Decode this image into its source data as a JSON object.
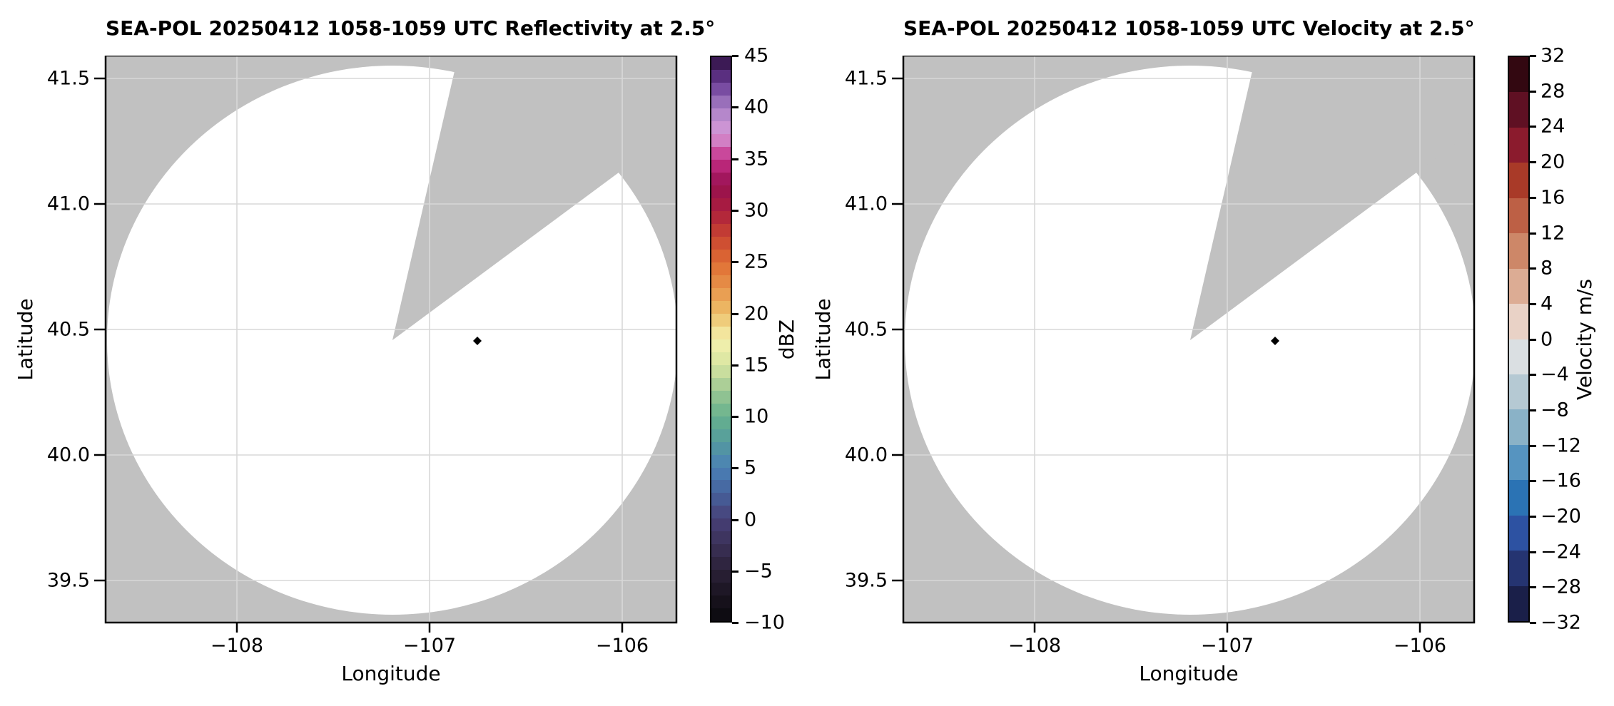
{
  "panels": [
    {
      "title": "SEA-POL 20250412 1058-1059 UTC Reflectivity at 2.5°"
    },
    {
      "title": "SEA-POL 20250412 1058-1059 UTC Velocity at 2.5°"
    }
  ],
  "axes": {
    "xlabel": "Longitude",
    "ylabel": "Latitude",
    "lon_ticks": [
      "−108",
      "−107",
      "−106"
    ],
    "lat_ticks": [
      "41.5",
      "41.0",
      "40.5",
      "40.0",
      "39.5"
    ]
  },
  "colorbars": {
    "reflectivity": {
      "label": "dBZ",
      "ticks": [
        "45",
        "40",
        "35",
        "30",
        "25",
        "20",
        "15",
        "10",
        "5",
        "0",
        "−5",
        "−10"
      ],
      "vmin": -10,
      "vmax": 45,
      "band_step": 1.25,
      "stops": [
        [
          -10,
          "#0a090d"
        ],
        [
          -7.5,
          "#1a1420"
        ],
        [
          -5,
          "#2b2138"
        ],
        [
          -2.5,
          "#3b3158"
        ],
        [
          0,
          "#474078"
        ],
        [
          2.5,
          "#46629d"
        ],
        [
          5,
          "#4a80b6"
        ],
        [
          7.5,
          "#549b9e"
        ],
        [
          10,
          "#66b18d"
        ],
        [
          12.5,
          "#9dc893"
        ],
        [
          15,
          "#d7e5a1"
        ],
        [
          17.5,
          "#f5f1ae"
        ],
        [
          20,
          "#edc06a"
        ],
        [
          22.5,
          "#e7944b"
        ],
        [
          25,
          "#e06d33"
        ],
        [
          27.5,
          "#c94531"
        ],
        [
          30,
          "#ac1e3d"
        ],
        [
          32.5,
          "#96104f"
        ],
        [
          35,
          "#c42d86"
        ],
        [
          37.5,
          "#d79ad8"
        ],
        [
          40,
          "#a981c6"
        ],
        [
          42.5,
          "#693a96"
        ],
        [
          45,
          "#2d0f3f"
        ]
      ]
    },
    "velocity": {
      "label": "Velocity m/s",
      "ticks": [
        "32",
        "28",
        "24",
        "20",
        "16",
        "12",
        "8",
        "4",
        "0",
        "−4",
        "−8",
        "−12",
        "−16",
        "−20",
        "−24",
        "−28",
        "−32"
      ],
      "vmin": -32,
      "vmax": 32,
      "band_step": 4,
      "band_colors_top_to_bottom": [
        "#330811",
        "#5f1023",
        "#8b1b2d",
        "#a93a28",
        "#bd6045",
        "#cd8768",
        "#dcac94",
        "#e9d2c6",
        "#dadfe2",
        "#b5c9d3",
        "#8ab2c7",
        "#5694c0",
        "#2b73b4",
        "#2d52a2",
        "#253471",
        "#1a1f49"
      ]
    }
  },
  "colors": {
    "background_mask": "#c1c1c1",
    "scan_area": "#ffffff",
    "gridline": "#d8d8d8",
    "marker": "#000000",
    "border": "#000000"
  },
  "chart_data": [
    {
      "type": "heatmap",
      "subtype": "radar_ppi",
      "title": "SEA-POL 20250412 1058-1059 UTC Reflectivity at 2.5°",
      "xlabel": "Longitude",
      "ylabel": "Latitude",
      "xlim": [
        -108.68,
        -105.72
      ],
      "ylim": [
        39.33,
        41.58
      ],
      "x_ticks": [
        -108,
        -107,
        -106
      ],
      "y_ticks": [
        39.5,
        40.0,
        40.5,
        41.0,
        41.5
      ],
      "grid": true,
      "colorbar_label": "dBZ",
      "colorbar_ticks": [
        -10,
        -5,
        0,
        5,
        10,
        15,
        20,
        25,
        30,
        35,
        40,
        45
      ],
      "clim": [
        -10,
        45
      ],
      "radar_center": {
        "lon": -107.19,
        "lat": 40.46
      },
      "scan_radius_deg": {
        "lon": 1.48,
        "lat": 1.09
      },
      "missing_sector_azimuth_deg": [
        12,
        53
      ],
      "echoes": "none — scan area is blank (all gates masked / below -10 dBZ)",
      "point_marker": {
        "lon": -106.75,
        "lat": 40.46,
        "shape": "diamond",
        "color": "#000000"
      }
    },
    {
      "type": "heatmap",
      "subtype": "radar_ppi",
      "title": "SEA-POL 20250412 1058-1059 UTC Velocity at 2.5°",
      "xlabel": "Longitude",
      "ylabel": "Latitude",
      "xlim": [
        -108.68,
        -105.72
      ],
      "ylim": [
        39.33,
        41.58
      ],
      "x_ticks": [
        -108,
        -107,
        -106
      ],
      "y_ticks": [
        39.5,
        40.0,
        40.5,
        41.0,
        41.5
      ],
      "grid": true,
      "colorbar_label": "Velocity m/s",
      "colorbar_ticks": [
        -32,
        -28,
        -24,
        -20,
        -16,
        -12,
        -8,
        -4,
        0,
        4,
        8,
        12,
        16,
        20,
        24,
        28,
        32
      ],
      "clim": [
        -32,
        32
      ],
      "radar_center": {
        "lon": -107.19,
        "lat": 40.46
      },
      "scan_radius_deg": {
        "lon": 1.48,
        "lat": 1.09
      },
      "missing_sector_azimuth_deg": [
        12,
        53
      ],
      "echoes": "none — scan area is blank (all gates masked)",
      "point_marker": {
        "lon": -106.75,
        "lat": 40.46,
        "shape": "diamond",
        "color": "#000000"
      }
    }
  ]
}
